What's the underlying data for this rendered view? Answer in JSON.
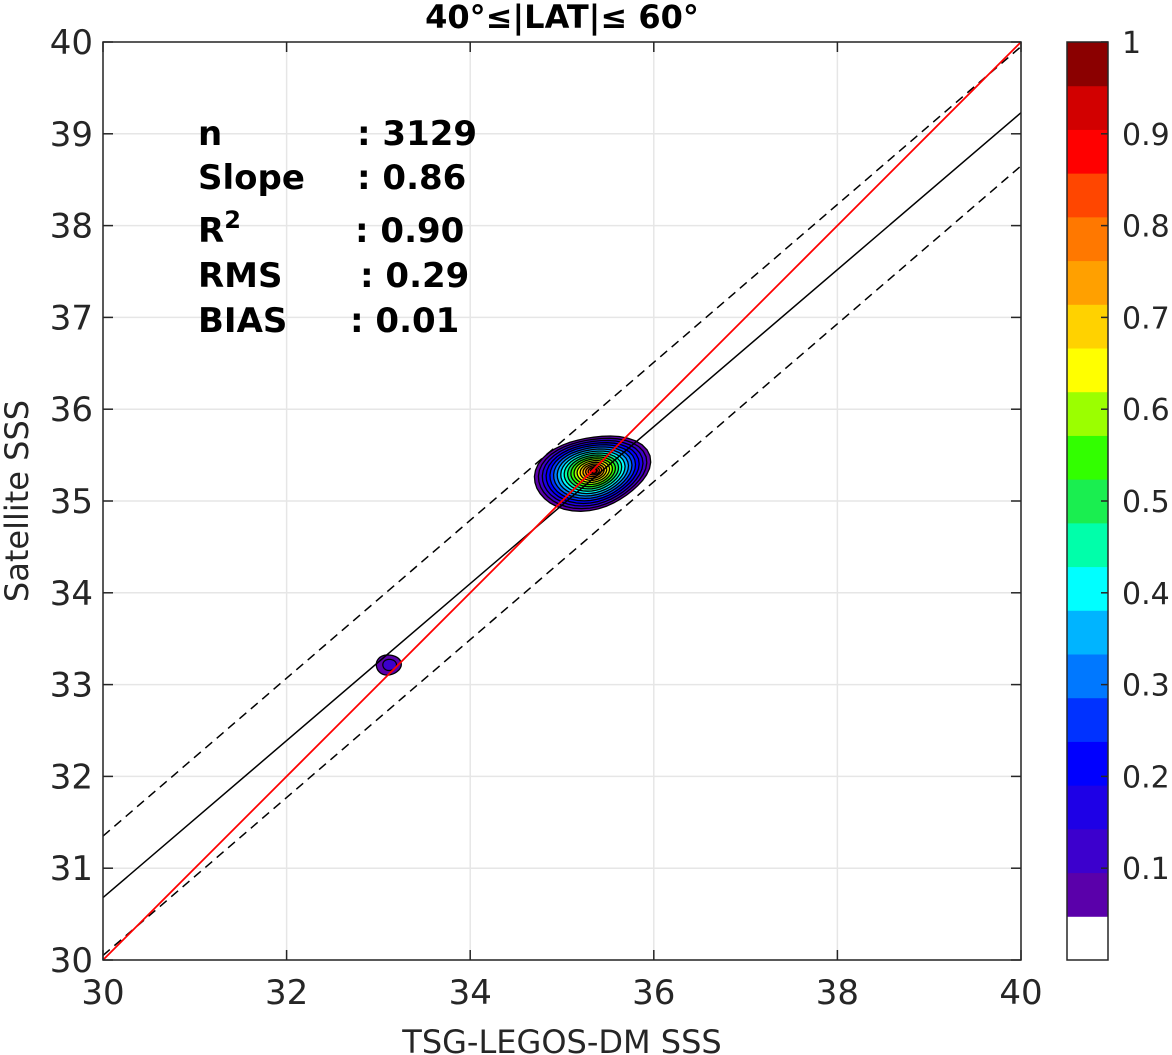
{
  "chart_data": {
    "type": "contour",
    "title": "40°≤|LAT|≤ 60°",
    "xlabel": "TSG-LEGOS-DM SSS",
    "ylabel": "Satellite SSS",
    "xlim": [
      30,
      40
    ],
    "ylim": [
      30,
      40
    ],
    "xticks": [
      30,
      32,
      34,
      36,
      38,
      40
    ],
    "yticks": [
      30,
      31,
      32,
      33,
      34,
      35,
      36,
      37,
      38,
      39,
      40
    ],
    "grid": true,
    "stats": {
      "n_label": "n",
      "n_value": ": 3129",
      "slope_label": "Slope",
      "slope_value": ": 0.86",
      "r2_label": "R",
      "r2_sup": "2",
      "r2_value": ": 0.90",
      "rms_label": "RMS",
      "rms_value": ": 0.29",
      "bias_label": "BIAS",
      "bias_value": ": 0.01"
    },
    "lines": {
      "one_to_one": {
        "slope": 1.0,
        "intercept": 0.0,
        "color": "#ff0000",
        "style": "solid"
      },
      "regression": {
        "slope": 0.855,
        "intercept": 5.03,
        "color": "#000000",
        "style": "solid"
      },
      "upper_bound": {
        "slope": 0.86,
        "intercept": 5.55,
        "color": "#000000",
        "style": "dashed"
      },
      "lower_bound": {
        "slope": 0.86,
        "intercept": 4.25,
        "color": "#000000",
        "style": "dashed"
      }
    },
    "density_clusters": [
      {
        "center": [
          35.35,
          35.33
        ],
        "outer_extent": {
          "xmin": 34.78,
          "xmax": 36.0,
          "ymin": 34.9,
          "ymax": 35.72
        },
        "peak": 0.95
      },
      {
        "center": [
          33.1,
          33.22
        ],
        "outer_extent": {
          "xmin": 32.98,
          "xmax": 33.24,
          "ymin": 33.1,
          "ymax": 33.33
        },
        "peak": 0.1
      }
    ],
    "colorbar": {
      "ticks": [
        "0.1",
        "0.2",
        "0.3",
        "0.4",
        "0.5",
        "0.6",
        "0.7",
        "0.8",
        "0.9",
        "1"
      ],
      "levels": [
        0.0,
        0.05,
        0.1,
        0.15,
        0.2,
        0.25,
        0.3,
        0.35,
        0.4,
        0.45,
        0.5,
        0.55,
        0.6,
        0.65,
        0.7,
        0.75,
        0.8,
        0.85,
        0.9,
        0.95,
        1.0
      ],
      "colors": [
        "#ffffff",
        "#5a00aa",
        "#3c00cd",
        "#1e00e6",
        "#0000ff",
        "#0032ff",
        "#0078ff",
        "#00b4ff",
        "#00ffff",
        "#00ffaa",
        "#1aee50",
        "#32ff00",
        "#9bff00",
        "#ffff00",
        "#ffd200",
        "#ffa000",
        "#ff7800",
        "#ff4600",
        "#ff0000",
        "#d20000",
        "#8b0000"
      ]
    }
  }
}
